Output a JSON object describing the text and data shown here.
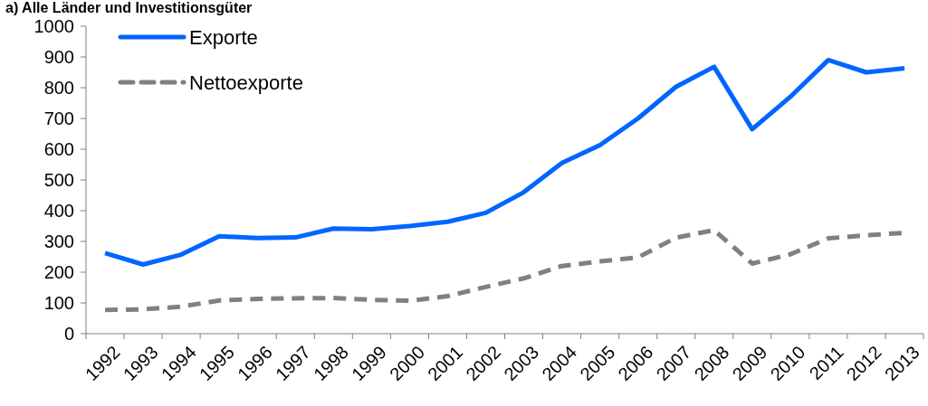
{
  "chart_data": {
    "type": "line",
    "title": "a) Alle Länder und Investitionsgüter",
    "categories": [
      "1992",
      "1993",
      "1994",
      "1995",
      "1996",
      "1997",
      "1998",
      "1999",
      "2000",
      "2001",
      "2002",
      "2003",
      "2004",
      "2005",
      "2006",
      "2007",
      "2008",
      "2009",
      "2010",
      "2011",
      "2012",
      "2013"
    ],
    "series": [
      {
        "name": "Exporte",
        "color": "#0066ff",
        "line_style": "solid",
        "values": [
          262,
          225,
          257,
          317,
          311,
          313,
          342,
          340,
          350,
          364,
          393,
          460,
          555,
          613,
          700,
          803,
          868,
          665,
          770,
          890,
          850,
          863
        ]
      },
      {
        "name": "Nettoexporte",
        "color": "#808080",
        "line_style": "dashed",
        "values": [
          77,
          79,
          88,
          108,
          113,
          115,
          116,
          110,
          107,
          122,
          152,
          180,
          220,
          235,
          248,
          312,
          337,
          228,
          258,
          310,
          320,
          328
        ]
      }
    ],
    "ylim": [
      0,
      1000
    ],
    "yticks": [
      0,
      100,
      200,
      300,
      400,
      500,
      600,
      700,
      800,
      900,
      1000
    ],
    "grid": false,
    "legend": "top left"
  }
}
